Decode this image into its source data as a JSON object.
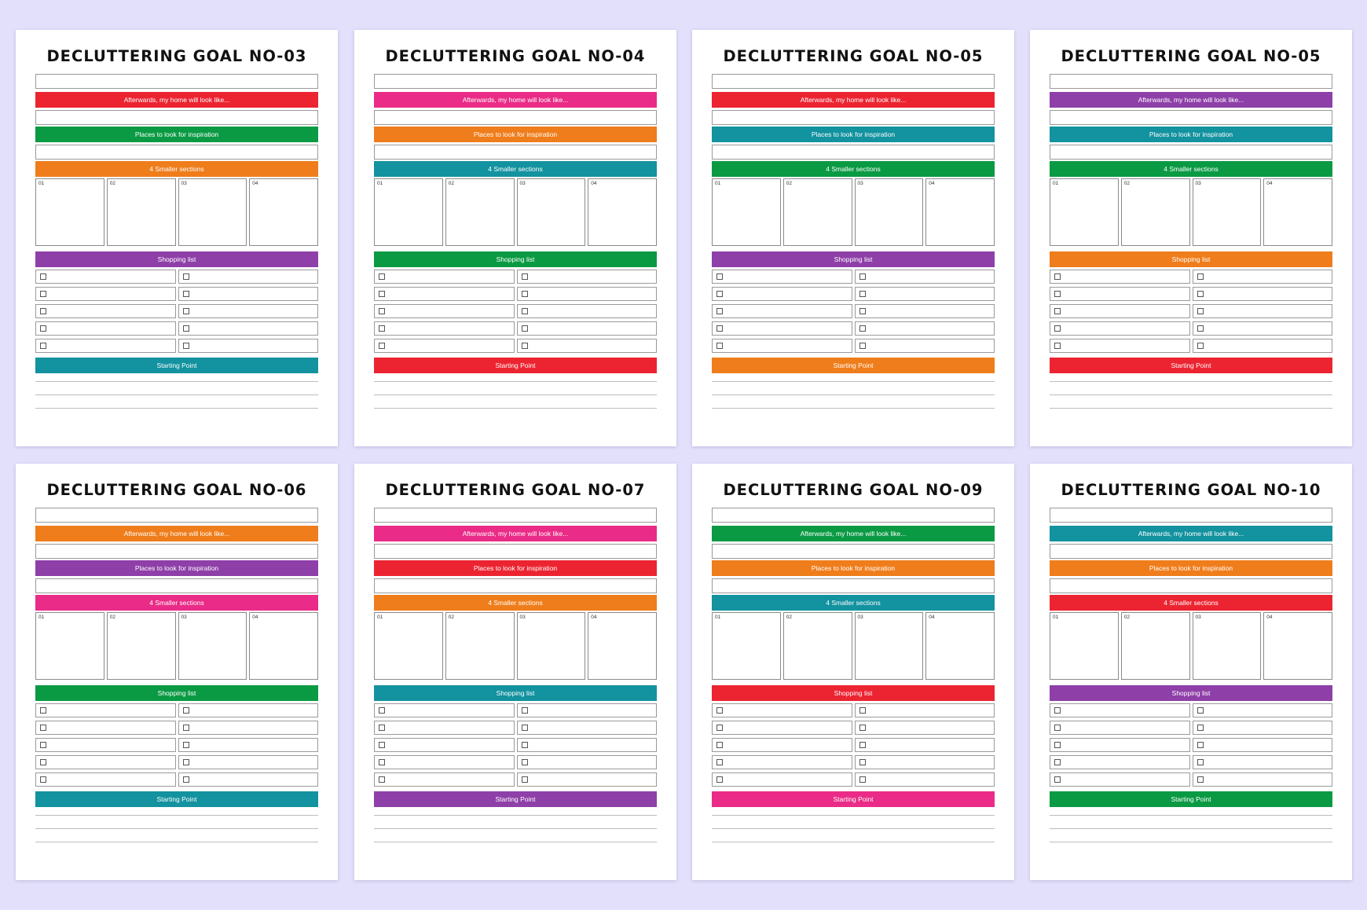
{
  "labels": {
    "afterwards": "Afterwards, my home will look like...",
    "places": "Places to look for inspiration",
    "sections": "4 Smaller sections",
    "shopping": "Shopping list",
    "starting": "Starting Point",
    "section_numbers": [
      "01",
      "02",
      "03",
      "04"
    ]
  },
  "colors": {
    "background": "#e3e0fb",
    "red": "#ec2431",
    "pink": "#ea2b87",
    "green": "#0a9a43",
    "orange": "#ef7d1b",
    "teal": "#13929f",
    "purple": "#8e3fa8"
  },
  "pages": [
    {
      "title": "DECLUTTERING GOAL NO-03",
      "afterwards_color": "red",
      "places_color": "green",
      "sections_color": "orange",
      "shopping_color": "purple",
      "starting_color": "teal"
    },
    {
      "title": "DECLUTTERING GOAL NO-04",
      "afterwards_color": "pink",
      "places_color": "orange",
      "sections_color": "teal",
      "shopping_color": "green",
      "starting_color": "red"
    },
    {
      "title": "DECLUTTERING GOAL NO-05",
      "afterwards_color": "red",
      "places_color": "teal",
      "sections_color": "green",
      "shopping_color": "purple",
      "starting_color": "orange"
    },
    {
      "title": "DECLUTTERING GOAL NO-05",
      "afterwards_color": "purple",
      "places_color": "teal",
      "sections_color": "green",
      "shopping_color": "orange",
      "starting_color": "red"
    },
    {
      "title": "DECLUTTERING GOAL NO-06",
      "afterwards_color": "orange",
      "places_color": "purple",
      "sections_color": "pink",
      "shopping_color": "green",
      "starting_color": "teal"
    },
    {
      "title": "DECLUTTERING GOAL NO-07",
      "afterwards_color": "pink",
      "places_color": "red",
      "sections_color": "orange",
      "shopping_color": "teal",
      "starting_color": "purple"
    },
    {
      "title": "DECLUTTERING GOAL NO-09",
      "afterwards_color": "green",
      "places_color": "orange",
      "sections_color": "teal",
      "shopping_color": "red",
      "starting_color": "pink"
    },
    {
      "title": "DECLUTTERING GOAL NO-10",
      "afterwards_color": "teal",
      "places_color": "orange",
      "sections_color": "red",
      "shopping_color": "purple",
      "starting_color": "green"
    }
  ]
}
